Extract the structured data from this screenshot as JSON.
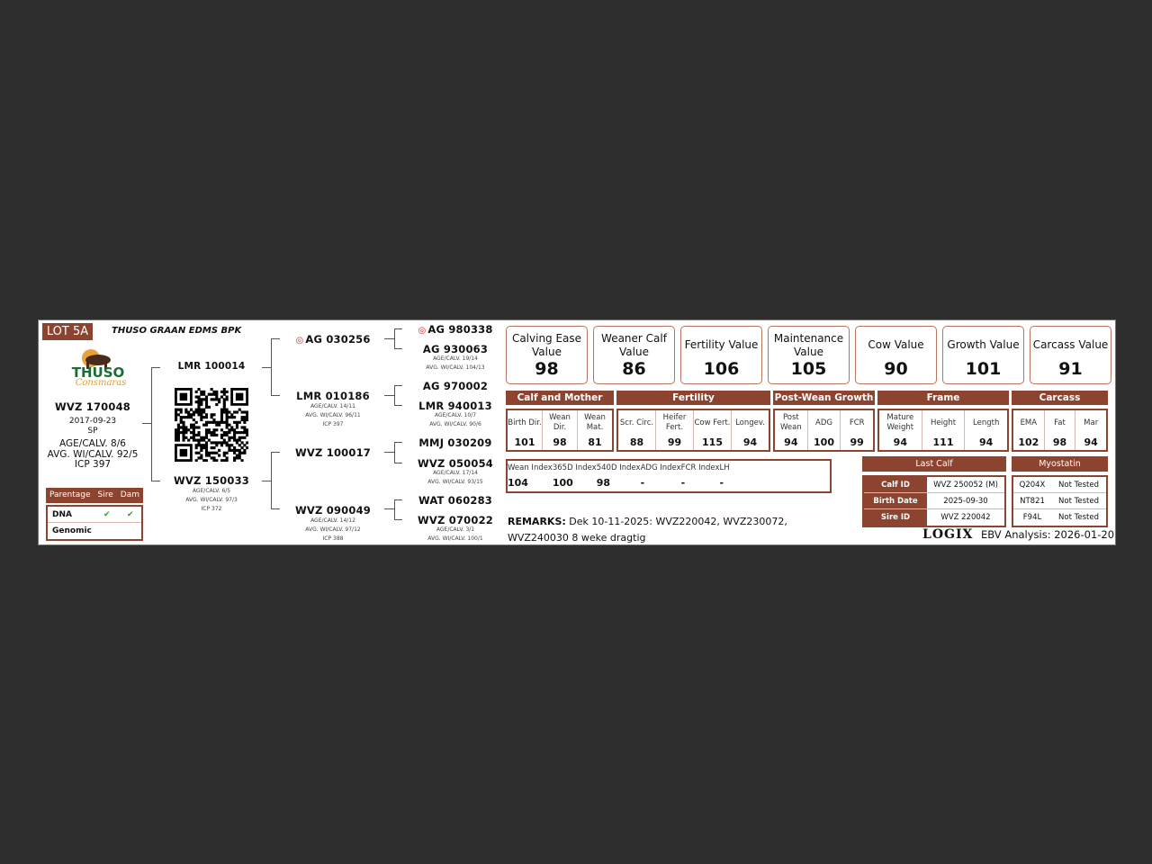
{
  "lot": "LOT 5A",
  "company": "THUSO GRAAN EDMS BPK",
  "logo_text": "THUSO Consmaras",
  "animal": {
    "id": "WVZ 170048",
    "dob": "2017-09-23",
    "type": "SP",
    "age": "AGE/CALV. 8/6",
    "avg": "AVG. WI/CALV. 92/5",
    "icp": "ICP 397"
  },
  "parentage": {
    "headers": [
      "Parentage",
      "Sire",
      "Dam"
    ],
    "rows": [
      {
        "label": "DNA",
        "sire": "✔",
        "dam": "✔"
      },
      {
        "label": "Genomic",
        "sire": "",
        "dam": ""
      }
    ]
  },
  "sire": {
    "id": "LMR 100014"
  },
  "dam": {
    "id": "WVZ 150033",
    "age": "AGE/CALV. 6/5",
    "avg": "AVG. WI/CALV. 97/3",
    "icp": "ICP 372"
  },
  "gen2": [
    {
      "id": "AG 030256",
      "icon": "ct-target-icon"
    },
    {
      "id": "LMR 010186",
      "age": "AGE/CALV. 14/11",
      "avg": "AVG. WI/CALV. 96/11",
      "icp": "ICP 397"
    },
    {
      "id": "WVZ 100017"
    },
    {
      "id": "WVZ 090049",
      "age": "AGE/CALV. 14/12",
      "avg": "AVG. WI/CALV. 97/12",
      "icp": "ICP 388"
    }
  ],
  "gen3": [
    {
      "id": "AG 980338",
      "icon": "ct-target-icon"
    },
    {
      "id": "AG 930063",
      "age": "AGE/CALV. 19/14",
      "avg": "AVG. WI/CALV. 104/13"
    },
    {
      "id": "AG 970002"
    },
    {
      "id": "LMR 940013",
      "age": "AGE/CALV. 10/7",
      "avg": "AVG. WI/CALV. 90/6"
    },
    {
      "id": "MMJ 030209"
    },
    {
      "id": "WVZ 050054",
      "age": "AGE/CALV. 17/14",
      "avg": "AVG. WI/CALV. 93/15"
    },
    {
      "id": "WAT 060283"
    },
    {
      "id": "WVZ 070022",
      "age": "AGE/CALV. 3/1",
      "avg": "AVG. WI/CALV. 100/1"
    }
  ],
  "values": [
    {
      "label": "Calving Ease Value",
      "value": "98"
    },
    {
      "label": "Weaner Calf Value",
      "value": "86"
    },
    {
      "label": "Fertility Value",
      "value": "106"
    },
    {
      "label": "Maintenance Value",
      "value": "105"
    },
    {
      "label": "Cow Value",
      "value": "90"
    },
    {
      "label": "Growth Value",
      "value": "101"
    },
    {
      "label": "Carcass Value",
      "value": "91"
    }
  ],
  "groups": [
    {
      "title": "Calf and Mother",
      "cells": [
        {
          "l": "Birth Dir.",
          "v": "101"
        },
        {
          "l": "Wean Dir.",
          "v": "98"
        },
        {
          "l": "Wean Mat.",
          "v": "81"
        }
      ]
    },
    {
      "title": "Fertility",
      "cells": [
        {
          "l": "Scr. Circ.",
          "v": "88"
        },
        {
          "l": "Heifer Fert.",
          "v": "99"
        },
        {
          "l": "Cow Fert.",
          "v": "115"
        },
        {
          "l": "Longev.",
          "v": "94"
        }
      ]
    },
    {
      "title": "Post-Wean Growth",
      "cells": [
        {
          "l": "Post Wean",
          "v": "94"
        },
        {
          "l": "ADG",
          "v": "100"
        },
        {
          "l": "FCR",
          "v": "99"
        }
      ]
    },
    {
      "title": "Frame",
      "cells": [
        {
          "l": "Mature Weight",
          "v": "94"
        },
        {
          "l": "Height",
          "v": "111"
        },
        {
          "l": "Length",
          "v": "94"
        }
      ]
    },
    {
      "title": "Carcass",
      "cells": [
        {
          "l": "EMA",
          "v": "102"
        },
        {
          "l": "Fat",
          "v": "98"
        },
        {
          "l": "Mar",
          "v": "94"
        }
      ]
    }
  ],
  "indexes": [
    {
      "l": "Wean Index",
      "v": "104"
    },
    {
      "l": "365D Index",
      "v": "100"
    },
    {
      "l": "540D Index",
      "v": "98"
    },
    {
      "l": "ADG Index",
      "v": "-"
    },
    {
      "l": "FCR Index",
      "v": "-"
    },
    {
      "l": "LH",
      "v": "-"
    }
  ],
  "last_calf": {
    "title": "Last Calf",
    "rows": [
      {
        "k": "Calf ID",
        "v": "WVZ 250052 (M)"
      },
      {
        "k": "Birth Date",
        "v": "2025-09-30"
      },
      {
        "k": "Sire ID",
        "v": "WVZ 220042"
      }
    ]
  },
  "myostatin": {
    "title": "Myostatin",
    "rows": [
      {
        "k": "Q204X",
        "v": "Not Tested"
      },
      {
        "k": "NT821",
        "v": "Not Tested"
      },
      {
        "k": "F94L",
        "v": "Not Tested"
      }
    ]
  },
  "remarks": {
    "label": "REMARKS:",
    "line1": "Dek 10-11-2025:  WVZ220042, WVZ230072,",
    "line2": "WVZ240030 8 weke dragtig"
  },
  "footer": {
    "logo": "LOGIX",
    "analysis": "EBV Analysis: 2026-01-20"
  },
  "colors": {
    "brand": "#8c4430",
    "check": "#3a9a2a",
    "background": "#2e2e2e"
  }
}
